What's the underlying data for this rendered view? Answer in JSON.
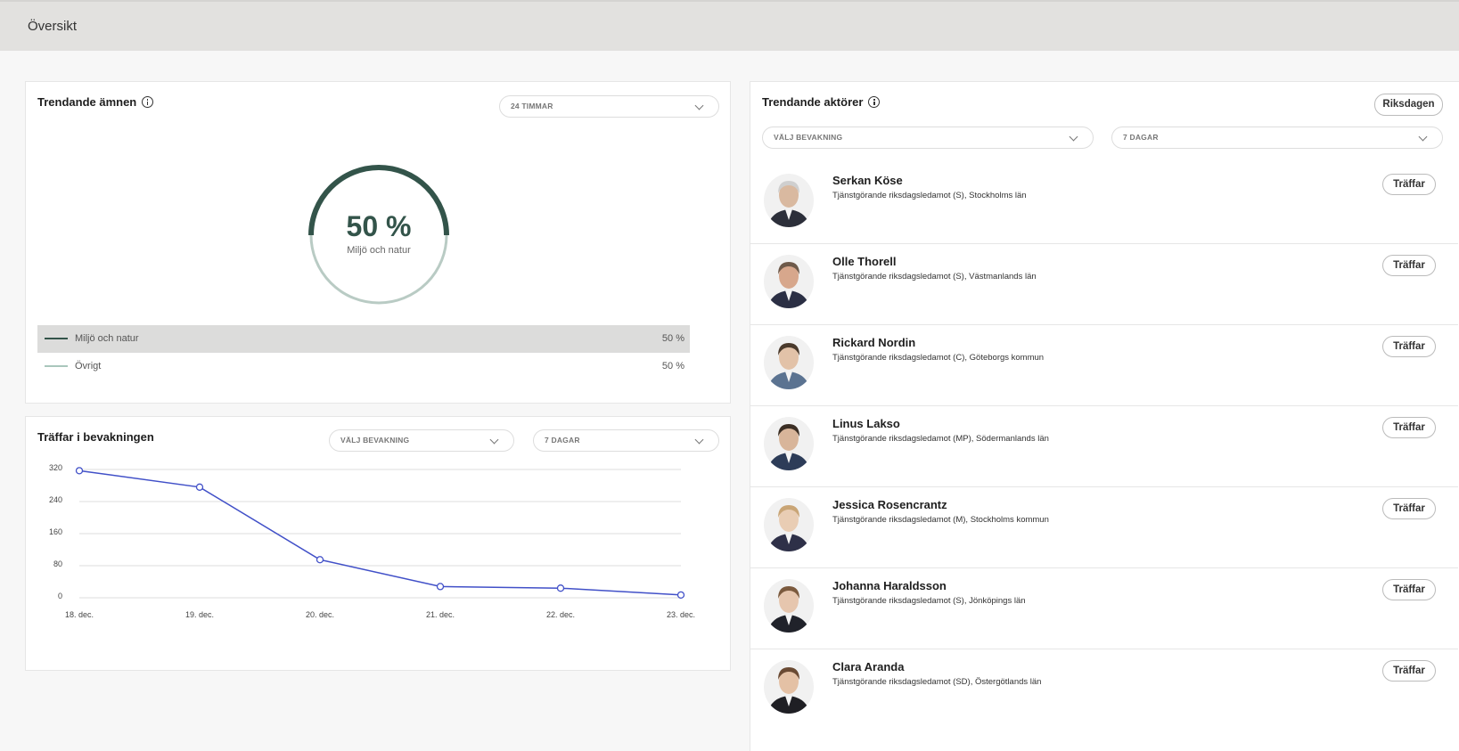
{
  "header": {
    "title": "Översikt"
  },
  "trending_topics": {
    "title": "Trendande ämnen",
    "period_select": "24 TIMMAR",
    "donut": {
      "value": "50 %",
      "label": "Miljö och natur",
      "fraction": 0.5,
      "color_primary": "#33544a",
      "color_secondary": "#b9cbc4"
    },
    "legend": [
      {
        "name": "Miljö och natur",
        "value": "50 %",
        "color": "#33544a"
      },
      {
        "name": "Övrigt",
        "value": "50 %",
        "color": "#a9c7bc"
      }
    ]
  },
  "hits": {
    "title": "Träffar i bevakningen",
    "watch_select": "VÄLJ BEVAKNING",
    "period_select": "7 DAGAR",
    "chart_data": {
      "type": "line",
      "categories": [
        "18. dec.",
        "19. dec.",
        "20. dec.",
        "21. dec.",
        "22. dec.",
        "23. dec."
      ],
      "series": [
        {
          "values": [
            317,
            276,
            95,
            28,
            24,
            7
          ],
          "color": "#4150c8"
        }
      ],
      "yticks": [
        "320",
        "240",
        "160",
        "80",
        "0"
      ],
      "ylim": [
        0,
        320
      ],
      "grid": true
    }
  },
  "trending_actors": {
    "title": "Trendande aktörer",
    "filter_button": "Riksdagen",
    "watch_select": "VÄLJ BEVAKNING",
    "period_select": "7 DAGAR",
    "hits_label": "Träffar",
    "actors": [
      {
        "name": "Serkan Köse",
        "desc": "Tjänstgörande riksdagsledamot (S), Stockholms län"
      },
      {
        "name": "Olle Thorell",
        "desc": "Tjänstgörande riksdagsledamot (S), Västmanlands län"
      },
      {
        "name": "Rickard Nordin",
        "desc": "Tjänstgörande riksdagsledamot (C), Göteborgs kommun"
      },
      {
        "name": "Linus Lakso",
        "desc": "Tjänstgörande riksdagsledamot (MP), Södermanlands län"
      },
      {
        "name": "Jessica Rosencrantz",
        "desc": "Tjänstgörande riksdagsledamot (M), Stockholms kommun"
      },
      {
        "name": "Johanna Haraldsson",
        "desc": "Tjänstgörande riksdagsledamot (S), Jönköpings län"
      },
      {
        "name": "Clara Aranda",
        "desc": "Tjänstgörande riksdagsledamot (SD), Östergötlands län"
      }
    ]
  }
}
